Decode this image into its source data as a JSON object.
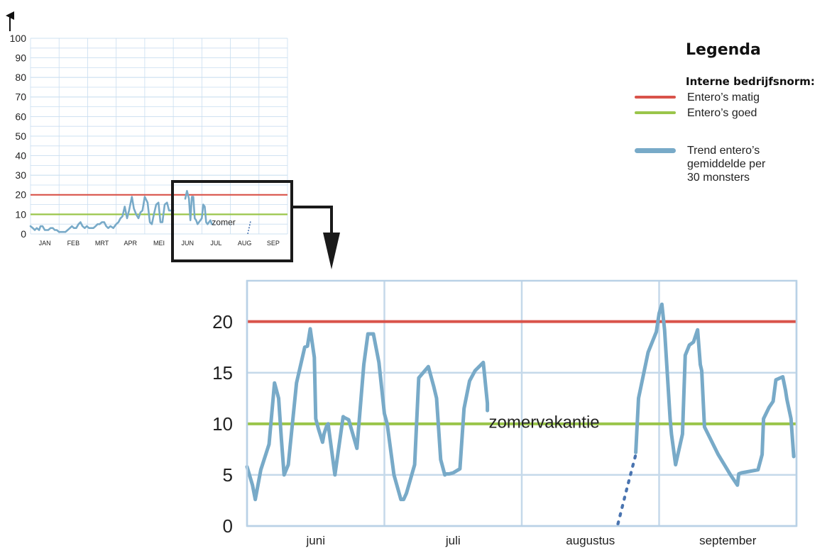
{
  "chart_data": [
    {
      "type": "line",
      "ylim": [
        0,
        100
      ],
      "yticks": [
        "0",
        "10",
        "20",
        "30",
        "40",
        "50",
        "60",
        "70",
        "80",
        "90",
        "100"
      ],
      "categories": [
        "JAN",
        "FEB",
        "MRT",
        "APR",
        "MEI",
        "JUN",
        "JUL",
        "AUG",
        "SEP"
      ],
      "annotation": "zomer",
      "grid": true,
      "reference_lines": [
        {
          "value": 20,
          "color": "#d9534a"
        },
        {
          "value": 10,
          "color": "#9ac54a"
        }
      ],
      "series": [
        {
          "color": "#78aac8",
          "x": [
            0.0,
            0.08,
            0.15,
            0.22,
            0.3,
            0.35,
            0.42,
            0.5,
            0.55,
            0.62,
            0.7,
            0.78,
            0.85,
            0.92,
            1.0,
            1.08,
            1.15,
            1.22,
            1.3,
            1.38,
            1.45,
            1.52,
            1.6,
            1.68,
            1.75,
            1.82,
            1.9,
            1.97,
            2.05,
            2.1,
            2.2,
            2.28,
            2.35,
            2.42,
            2.5,
            2.58,
            2.65,
            2.72,
            2.8,
            2.9,
            3.0,
            3.08,
            3.15,
            3.22,
            3.3,
            3.38,
            3.45,
            3.55,
            3.62,
            3.7,
            3.78,
            3.85,
            3.92,
            4.0,
            4.1,
            4.18,
            4.25,
            4.32,
            4.4,
            4.48,
            4.55,
            4.62,
            4.7,
            4.78,
            4.85,
            4.92,
            5.0,
            5.04,
            5.08,
            5.12,
            5.18,
            5.24,
            5.3,
            5.36,
            5.42,
            5.48,
            5.55,
            5.6,
            5.65,
            5.7,
            5.75,
            5.8,
            5.85,
            5.9,
            5.95,
            6.0,
            6.05,
            6.1,
            6.15,
            6.2,
            6.25,
            6.3,
            6.35
          ],
          "values": [
            4,
            3,
            2,
            3,
            2,
            4,
            4,
            2,
            2,
            2,
            3,
            3,
            2,
            2,
            1,
            1,
            1,
            1,
            2,
            3,
            4,
            3,
            3,
            5,
            6,
            4,
            3,
            4,
            3,
            3,
            3,
            4,
            5,
            5,
            6,
            6,
            4,
            3,
            4,
            3,
            5,
            6,
            8,
            9,
            14,
            8,
            12,
            19,
            13,
            10,
            8,
            11,
            12,
            19,
            16,
            6,
            5,
            10,
            15,
            16,
            6,
            6,
            15,
            16,
            12,
            12,
            12,
            null,
            null,
            null,
            null,
            null,
            null,
            null,
            18,
            22,
            18,
            7,
            19,
            19,
            8,
            7,
            5,
            6,
            7,
            8,
            15,
            14,
            6,
            5,
            6,
            7,
            5
          ]
        }
      ]
    },
    {
      "type": "line",
      "ylim": [
        0,
        24
      ],
      "yticks": [
        "0",
        "5",
        "10",
        "15",
        "20"
      ],
      "categories": [
        "juni",
        "juli",
        "augustus",
        "september"
      ],
      "annotation": "zomervakantie",
      "grid": true,
      "reference_lines": [
        {
          "value": 20,
          "color": "#d9534a"
        },
        {
          "value": 10,
          "color": "#9ac54a"
        }
      ],
      "series": [
        {
          "color": "#78aac8",
          "style": "solid",
          "x": [
            0.0,
            0.04,
            0.06,
            0.1,
            0.16,
            0.2,
            0.23,
            0.25,
            0.27,
            0.3,
            0.36,
            0.42,
            0.44,
            0.46,
            0.49,
            0.5,
            0.52,
            0.55,
            0.56,
            0.58,
            0.59,
            0.64,
            0.7,
            0.71,
            0.74,
            0.8,
            0.85,
            0.88,
            0.92,
            0.96,
            1.0,
            1.02,
            1.07,
            1.12,
            1.14,
            1.16,
            1.22,
            1.25,
            1.32,
            1.36,
            1.38,
            1.41,
            1.44,
            1.45,
            1.47,
            1.5,
            1.55,
            1.58,
            1.59,
            1.62,
            1.66,
            1.72,
            1.75,
            1.75
          ],
          "values": [
            5.8,
            4,
            2.6,
            5.5,
            8,
            14,
            12.5,
            8.5,
            5,
            6,
            14,
            17.5,
            17.6,
            19.3,
            16.5,
            10.5,
            9.5,
            8.2,
            9,
            9.8,
            10,
            5,
            10.7,
            10.6,
            10.4,
            7.6,
            15.8,
            18.8,
            18.8,
            16,
            11,
            10,
            5,
            2.6,
            2.6,
            3.2,
            6,
            14.5,
            15.6,
            13.6,
            12.5,
            6.5,
            5,
            5.1,
            5.1,
            5.2,
            5.6,
            11.5,
            12.2,
            14.2,
            15.2,
            16,
            12,
            11.3
          ]
        },
        {
          "color": "#4a74b0",
          "style": "dotted",
          "x": [
            2.7,
            2.76,
            2.83
          ],
          "values": [
            0.2,
            3.4,
            7.0
          ]
        },
        {
          "color": "#78aac8",
          "style": "solid",
          "x": [
            2.83,
            2.85,
            2.92,
            2.98,
            3.0,
            3.02,
            3.04,
            3.08,
            3.09,
            3.12,
            3.17,
            3.19,
            3.22,
            3.25,
            3.28,
            3.3,
            3.31,
            3.33,
            3.43,
            3.52,
            3.57,
            3.58,
            3.6,
            3.72,
            3.74,
            3.75,
            3.76,
            3.8,
            3.83,
            3.85,
            3.9,
            3.92,
            3.93,
            3.96,
            3.98
          ],
          "values": [
            7.2,
            12.5,
            17,
            19,
            20.8,
            21.7,
            19.2,
            10.5,
            9,
            6,
            9,
            16.7,
            17.7,
            18,
            19.2,
            15.8,
            15.2,
            9.7,
            7,
            5,
            4,
            5.1,
            5.2,
            5.5,
            6.5,
            7,
            10.5,
            11.6,
            12.2,
            14.3,
            14.6,
            13.3,
            12.4,
            10.5,
            6.8
          ]
        }
      ]
    }
  ],
  "legend": {
    "title": "Legenda",
    "subtitle": "Interne bedrijfsnorm:",
    "items": [
      {
        "label": "Entero’s matig",
        "color": "#d9534a",
        "kind": "line"
      },
      {
        "label": "Entero’s goed",
        "color": "#9ac54a",
        "kind": "line"
      },
      {
        "label": "Trend entero’s\ngemiddelde per\n30 monsters",
        "color": "#78aac8",
        "kind": "thick"
      }
    ]
  }
}
